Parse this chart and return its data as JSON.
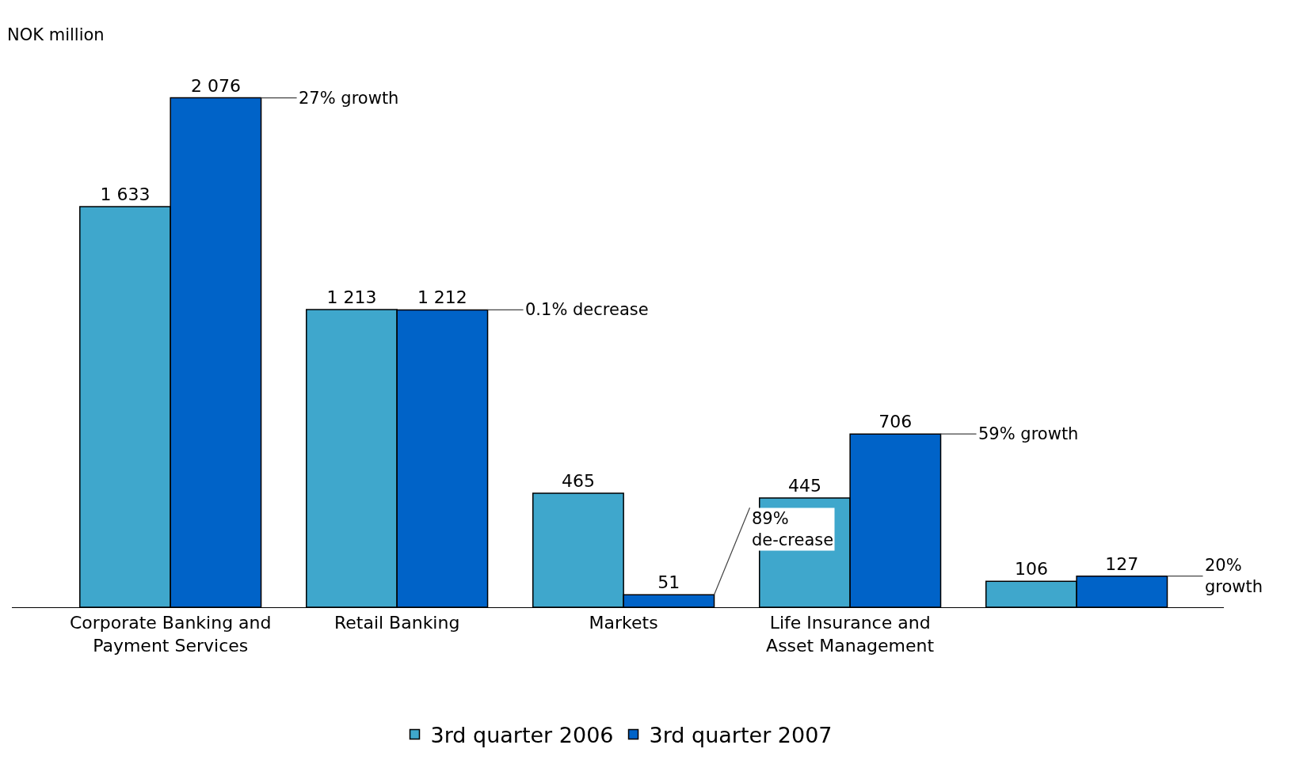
{
  "chart_data": {
    "type": "bar",
    "ylabel": "NOK million",
    "categories": [
      "Corporate Banking and Payment Services",
      "Retail Banking",
      "Markets",
      "Life Insurance and Asset Management",
      null
    ],
    "series": [
      {
        "name": "3rd quarter 2006",
        "color": "#3fa7cc",
        "values": [
          1633,
          1213,
          465,
          445,
          106
        ],
        "value_labels": [
          "1 633",
          "1 213",
          "465",
          "445",
          "106"
        ]
      },
      {
        "name": "3rd quarter 2007",
        "color": "#0063c8",
        "values": [
          2076,
          1212,
          51,
          706,
          127
        ],
        "value_labels": [
          "2 076",
          "1 212",
          "51",
          "706",
          "127"
        ]
      }
    ],
    "annotations": [
      "27% growth",
      "0.1% decrease",
      "89% de-crease",
      "59% growth",
      "20% growth"
    ],
    "legend": "bottom"
  }
}
